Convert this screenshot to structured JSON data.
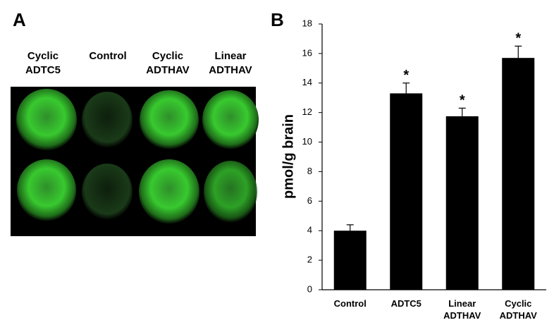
{
  "panel_a": {
    "label": "A",
    "columns": [
      "Cyclic ADTC5",
      "Control",
      "Cyclic ADTHAV",
      "Linear ADTHAV"
    ]
  },
  "chart_data": {
    "type": "bar",
    "panel_label": "B",
    "y_label": "pmol/g brain",
    "categories": [
      "Control",
      "ADTC5",
      "Linear ADTHAV",
      "Cyclic ADTHAV"
    ],
    "values": [
      4.0,
      13.3,
      11.75,
      15.7
    ],
    "errors": [
      0.4,
      0.7,
      0.55,
      0.8
    ],
    "color": "#000000",
    "annotations": [
      {
        "category_index": 1,
        "text": "*"
      },
      {
        "category_index": 2,
        "text": "*"
      },
      {
        "category_index": 3,
        "text": "*"
      }
    ],
    "ylim": [
      0,
      18
    ],
    "yticks": [
      0,
      2,
      4,
      6,
      8,
      10,
      12,
      14,
      16,
      18
    ]
  }
}
